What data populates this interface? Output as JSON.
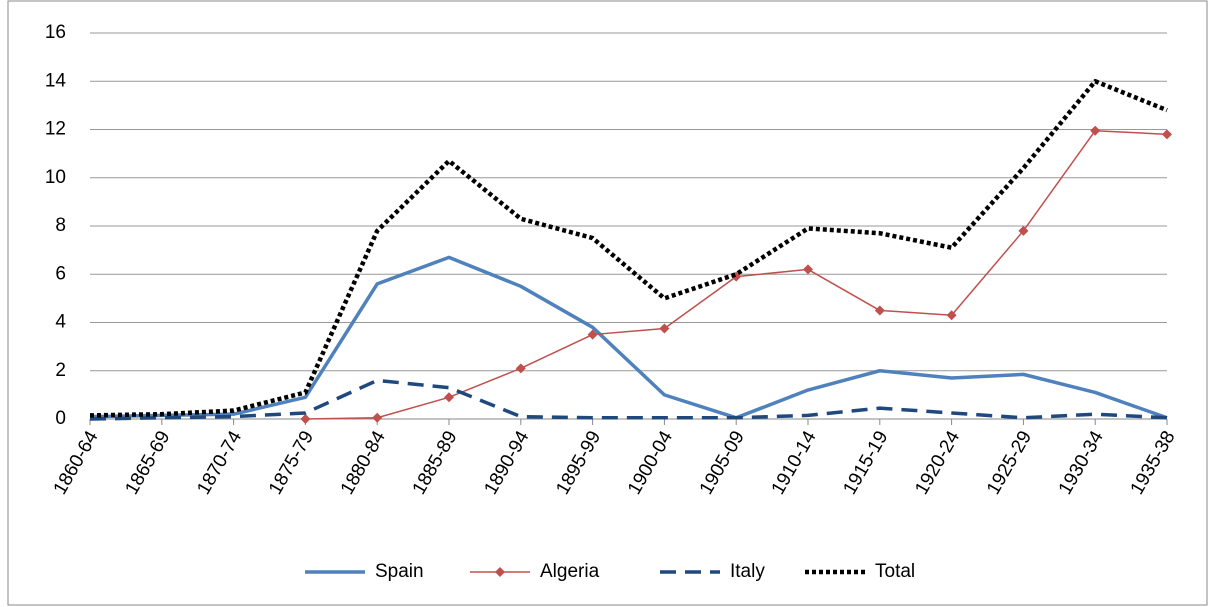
{
  "chart_data": {
    "type": "line",
    "categories": [
      "1860-64",
      "1865-69",
      "1870-74",
      "1875-79",
      "1880-84",
      "1885-89",
      "1890-94",
      "1895-99",
      "1900-04",
      "1905-09",
      "1910-14",
      "1915-19",
      "1920-24",
      "1925-29",
      "1930-34",
      "1935-38"
    ],
    "series": [
      {
        "name": "Spain",
        "color": "#4f81bd",
        "style": "solid",
        "values": [
          0.1,
          0.15,
          0.2,
          0.9,
          5.6,
          6.7,
          5.5,
          3.8,
          1.0,
          0.05,
          1.2,
          2.0,
          1.7,
          1.85,
          1.1,
          0.05
        ]
      },
      {
        "name": "Algeria",
        "color": "#c0504d",
        "style": "solid",
        "marker": "diamond",
        "values": [
          null,
          null,
          null,
          0,
          0.05,
          0.9,
          2.1,
          3.5,
          3.75,
          5.9,
          6.2,
          4.5,
          4.3,
          7.8,
          11.95,
          11.8
        ]
      },
      {
        "name": "Italy",
        "color": "#1f497d",
        "style": "dashed",
        "values": [
          0,
          0.05,
          0.1,
          0.25,
          1.6,
          1.3,
          0.1,
          0.05,
          0.05,
          0.05,
          0.15,
          0.45,
          0.25,
          0.05,
          0.2,
          0.05
        ]
      },
      {
        "name": "Total",
        "color": "#000000",
        "style": "dotted",
        "values": [
          0.15,
          0.2,
          0.35,
          1.1,
          7.8,
          10.7,
          8.3,
          7.5,
          5.0,
          6.0,
          7.9,
          7.7,
          7.1,
          10.4,
          14.0,
          12.8
        ]
      }
    ],
    "ylim": [
      0,
      16
    ],
    "yticks": [
      0,
      2,
      4,
      6,
      8,
      10,
      12,
      14,
      16
    ],
    "grid": true,
    "legend": "bottom"
  }
}
